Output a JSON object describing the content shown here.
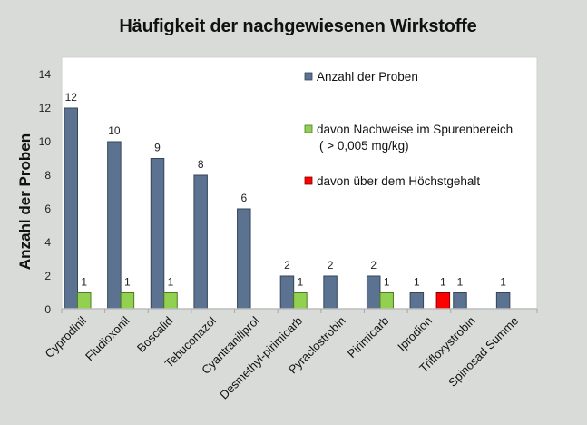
{
  "chart_data": {
    "type": "bar",
    "title": "Häufigkeit der nachgewiesenen Wirkstoffe",
    "xlabel": "",
    "ylabel": "Anzahl der Proben",
    "ylim": [
      0,
      14
    ],
    "yticks": [
      0,
      2,
      4,
      6,
      8,
      10,
      12,
      14
    ],
    "grid": false,
    "legend_position": "top-right (inside plot)",
    "categories": [
      "Cyprodinil",
      "Fludioxonil",
      "Boscalid",
      "Tebuconazol",
      "Cyantraniliprol",
      "Desmethyl-pirimicarb",
      "Pyraclostrobin",
      "Pirimicarb",
      "Iprodion",
      "Trifloxystrobin",
      "Spinosad Summe"
    ],
    "series": [
      {
        "name": "Anzahl der Proben",
        "color": "#5b7290",
        "border": "#364659",
        "values": [
          12,
          10,
          9,
          8,
          6,
          2,
          2,
          2,
          1,
          1,
          1
        ]
      },
      {
        "name": "davon Nachweise im Spurenbereich",
        "name_line2": "( > 0,005 mg/kg)",
        "color": "#92d050",
        "border": "#4e7b27",
        "values": [
          1,
          1,
          1,
          null,
          null,
          1,
          null,
          1,
          null,
          null,
          null
        ]
      },
      {
        "name": "davon über dem Höchstgehalt",
        "color": "#ff0000",
        "border": "#8a0000",
        "values": [
          null,
          null,
          null,
          null,
          null,
          null,
          null,
          null,
          1,
          null,
          null
        ]
      }
    ],
    "data_labels": true
  }
}
